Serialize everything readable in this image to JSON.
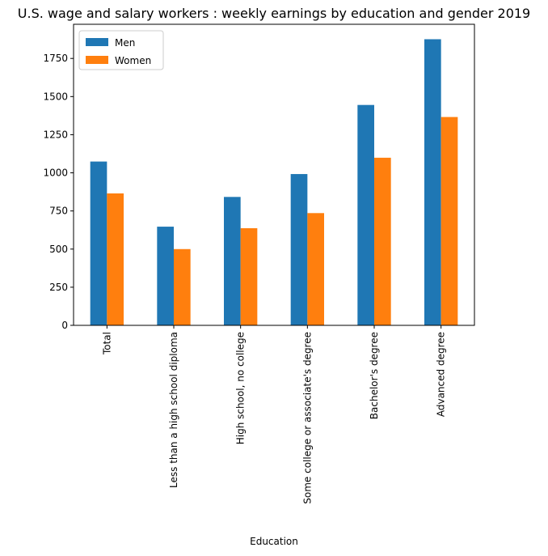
{
  "chart_data": {
    "type": "bar",
    "title": "U.S. wage and salary workers : weekly earnings by education and gender 2019",
    "xlabel": "Education",
    "ylabel": "",
    "categories": [
      "Total",
      "Less than a high school diploma",
      "High school, no college",
      "Some college or associate's degree",
      "Bachelor's degree",
      "Advanced degree"
    ],
    "series": [
      {
        "name": "Men",
        "color": "#1f77b4",
        "values": [
          1074,
          647,
          842,
          992,
          1445,
          1876
        ]
      },
      {
        "name": "Women",
        "color": "#ff7f0e",
        "values": [
          865,
          500,
          637,
          736,
          1099,
          1366
        ]
      }
    ],
    "ylim": [
      0,
      1974
    ],
    "yticks": [
      0,
      250,
      500,
      750,
      1000,
      1250,
      1500,
      1750
    ],
    "grid": false,
    "legend_position": "top-left"
  }
}
